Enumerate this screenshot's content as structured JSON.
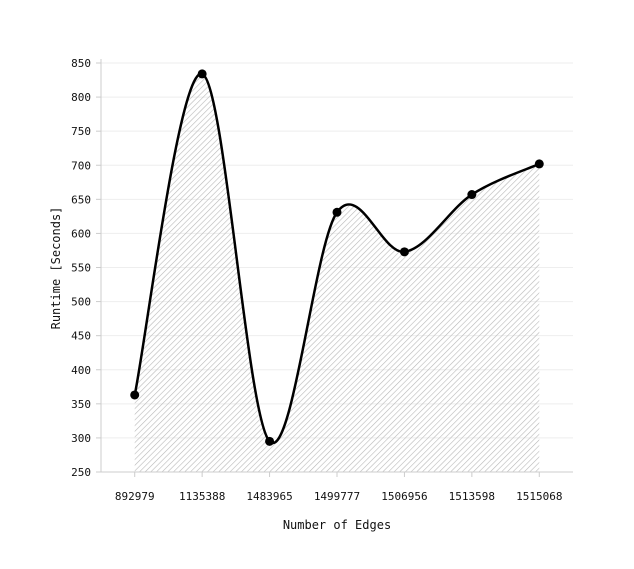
{
  "chart_data": {
    "type": "line",
    "title": "",
    "xlabel": "Number of Edges",
    "ylabel": "Runtime [Seconds]",
    "categories": [
      "892979",
      "1135388",
      "1483965",
      "1499777",
      "1506956",
      "1513598",
      "1515068"
    ],
    "series": [
      {
        "values": [
          363,
          834,
          295,
          631,
          573,
          657,
          702
        ]
      }
    ],
    "ylim": [
      250,
      850
    ],
    "yticks": [
      250,
      300,
      350,
      400,
      450,
      500,
      550,
      600,
      650,
      700,
      750,
      800,
      850
    ],
    "grid": true,
    "fill": "hatched area under curve",
    "colors": {
      "line": "#000000",
      "point": "#000000",
      "grid": "#eeeeee",
      "axis": "#cccccc",
      "hatch": "#b8b8b8"
    }
  }
}
